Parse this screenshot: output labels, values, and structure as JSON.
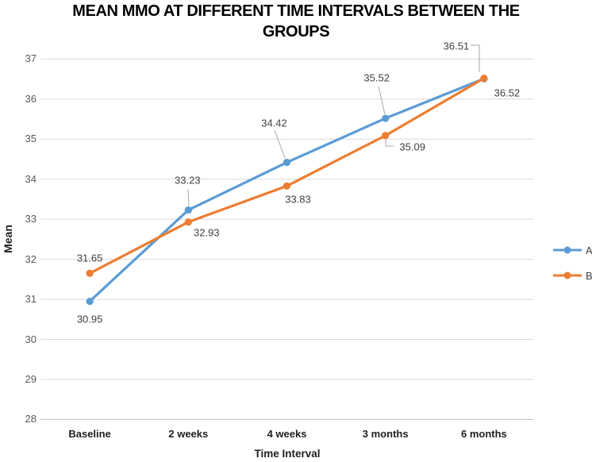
{
  "title_lines": [
    "MEAN MMO AT DIFFERENT TIME INTERVALS BETWEEN THE",
    "GROUPS"
  ],
  "chart_data": {
    "type": "line",
    "title": "MEAN MMO AT DIFFERENT TIME INTERVALS BETWEEN THE GROUPS",
    "xlabel": "Time Interval",
    "ylabel": "Mean",
    "categories": [
      "Baseline",
      "2 weeks",
      "4 weeks",
      "3 months",
      "6 months"
    ],
    "yticks": [
      28,
      29,
      30,
      31,
      32,
      33,
      34,
      35,
      36,
      37
    ],
    "ylim": [
      28,
      37
    ],
    "grid": true,
    "legend_position": "right",
    "series": [
      {
        "name": "A",
        "color": "#5B9BD5",
        "values": [
          30.95,
          33.23,
          34.42,
          35.52,
          36.51
        ],
        "labels": [
          "30.95",
          "33.23",
          "34.42",
          "35.52",
          "36.51"
        ]
      },
      {
        "name": "B",
        "color": "#ED7D31",
        "values": [
          31.65,
          32.93,
          33.83,
          35.09,
          36.52
        ],
        "labels": [
          "31.65",
          "32.93",
          "33.83",
          "35.09",
          "36.52"
        ]
      }
    ]
  },
  "colors": {
    "gridline": "#D9D9D9",
    "axis_line": "#BFBFBF",
    "leader_line": "#A6A6A6",
    "tick_text": "#595959",
    "data_label_text": "#404040",
    "title_text": "#000000"
  }
}
